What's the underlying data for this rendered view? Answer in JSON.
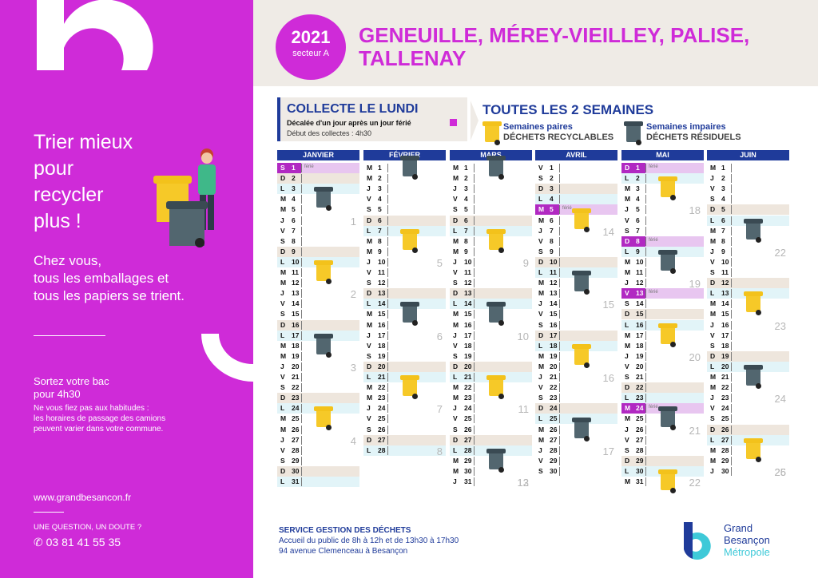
{
  "left": {
    "tagline": [
      "Trier mieux",
      "pour",
      "recycler",
      "plus !"
    ],
    "subtitle": [
      "Chez vous,",
      "tous les emballages et",
      "tous les papiers se trient."
    ],
    "out_title": [
      "Sortez votre bac",
      "pour 4h30"
    ],
    "out_text": [
      "Ne vous fiez pas aux habitudes :",
      "les horaires de passage des camions",
      "peuvent varier dans votre commune."
    ],
    "website": "www.grandbesancon.fr",
    "question": "UNE QUESTION, UN DOUTE ?",
    "phone": "✆ 03 81 41 55 35"
  },
  "header": {
    "year": "2021",
    "sector": "secteur A",
    "towns": [
      "GENEUILLE, MÉREY-VIEILLEY, PALISE,",
      "TALLENAY"
    ]
  },
  "collect": {
    "title": "COLLECTE LE LUNDI",
    "shift": "Décalée d'un jour après un jour férié",
    "start": "Début des collectes : 4h30",
    "frequency": "TOUTES LES 2 SEMAINES",
    "even_label": "Semaines paires",
    "even_type": "DÉCHETS RECYCLABLES",
    "odd_label": "Semaines impaires",
    "odd_type": "DÉCHETS RÉSIDUELS"
  },
  "holiday_label": "férié",
  "months": [
    {
      "name": "JANVIER",
      "start": 5,
      "days": 31,
      "holidays": [
        1
      ],
      "weeks": [
        1,
        2,
        3,
        4
      ],
      "bins": [
        {
          "day": 4,
          "type": "gr"
        },
        {
          "day": 11,
          "type": "yl"
        },
        {
          "day": 18,
          "type": "gr"
        },
        {
          "day": 25,
          "type": "yl"
        }
      ]
    },
    {
      "name": "FÉVRIER",
      "start": 1,
      "days": 28,
      "holidays": [],
      "weeks": [
        5,
        6,
        7,
        8
      ],
      "bins": [
        {
          "day": 1,
          "type": "gr"
        },
        {
          "day": 8,
          "type": "yl"
        },
        {
          "day": 15,
          "type": "gr"
        },
        {
          "day": 22,
          "type": "yl"
        }
      ]
    },
    {
      "name": "MARS",
      "start": 1,
      "days": 31,
      "holidays": [],
      "weeks": [
        9,
        10,
        11,
        12,
        13
      ],
      "bins": [
        {
          "day": 1,
          "type": "gr"
        },
        {
          "day": 8,
          "type": "yl"
        },
        {
          "day": 15,
          "type": "gr"
        },
        {
          "day": 22,
          "type": "yl"
        },
        {
          "day": 29,
          "type": "gr"
        }
      ]
    },
    {
      "name": "AVRIL",
      "start": 4,
      "days": 30,
      "holidays": [
        5
      ],
      "weeks": [
        14,
        15,
        16,
        17
      ],
      "bins": [
        {
          "day": 6,
          "type": "yl"
        },
        {
          "day": 12,
          "type": "gr"
        },
        {
          "day": 19,
          "type": "yl"
        },
        {
          "day": 26,
          "type": "gr"
        }
      ]
    },
    {
      "name": "MAI",
      "start": 6,
      "days": 31,
      "holidays": [
        1,
        8,
        13,
        24
      ],
      "weeks": [
        18,
        19,
        20,
        21,
        22
      ],
      "bins": [
        {
          "day": 3,
          "type": "yl"
        },
        {
          "day": 10,
          "type": "gr"
        },
        {
          "day": 17,
          "type": "yl"
        },
        {
          "day": 25,
          "type": "gr"
        },
        {
          "day": 31,
          "type": "yl"
        }
      ]
    },
    {
      "name": "JUIN",
      "start": 2,
      "days": 30,
      "holidays": [],
      "weeks": [
        22,
        23,
        24,
        25,
        26
      ],
      "bins": [
        {
          "day": 7,
          "type": "gr"
        },
        {
          "day": 14,
          "type": "yl"
        },
        {
          "day": 21,
          "type": "gr"
        },
        {
          "day": 28,
          "type": "yl"
        }
      ]
    }
  ],
  "day_letters": [
    "L",
    "M",
    "M",
    "J",
    "V",
    "S",
    "D"
  ],
  "footer": {
    "title": "SERVICE GESTION DES DÉCHETS",
    "line1": "Accueil du public de 8h à 12h et de 13h30 à 17h30",
    "line2": "94 avenue Clemenceau à Besançon"
  },
  "logo": {
    "line1": "Grand",
    "line2": "Besançon",
    "line3": "Métropole",
    "mark": "b"
  },
  "colors": {
    "magenta": "#cf2bd8",
    "navy": "#1f3b9a",
    "teal": "#3ec9d8"
  }
}
